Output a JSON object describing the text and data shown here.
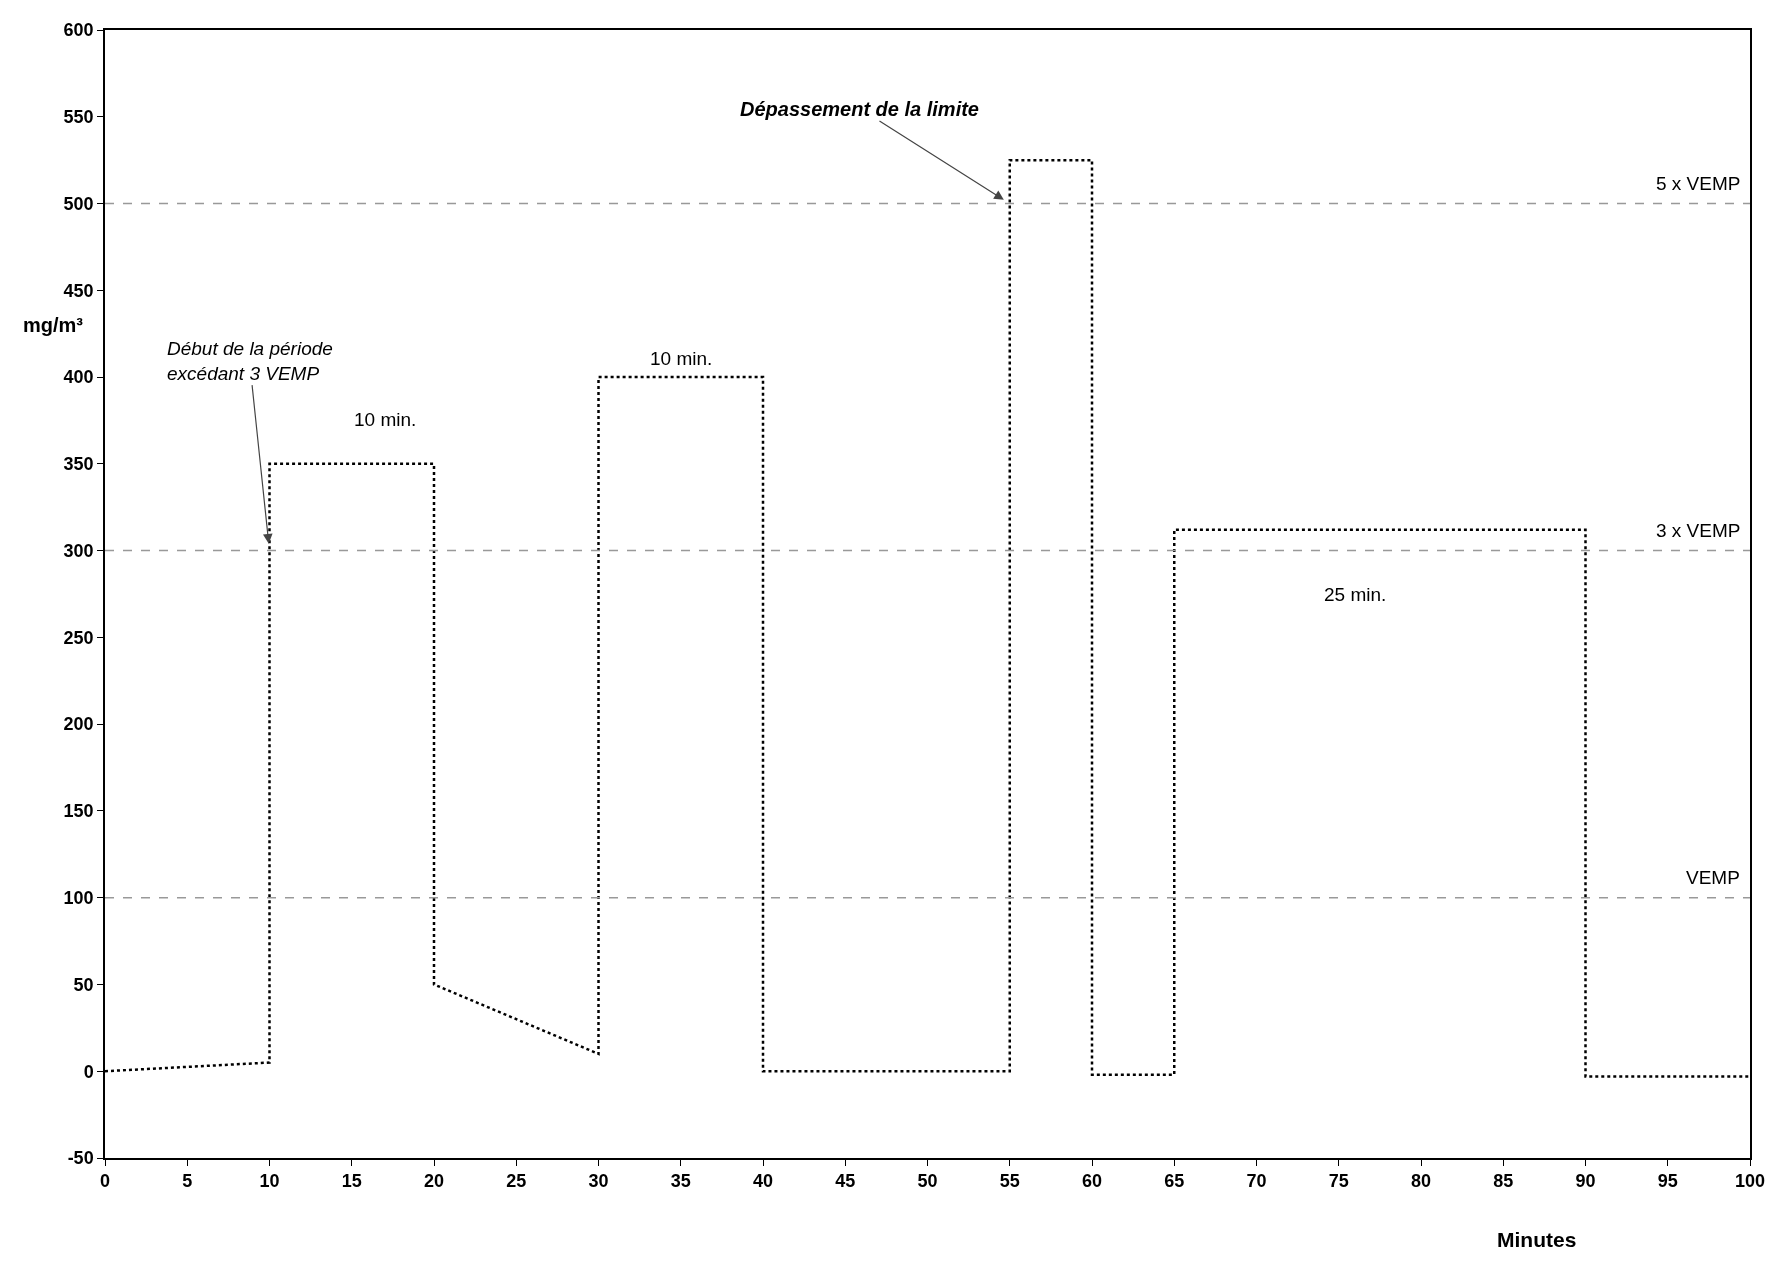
{
  "chart_data": {
    "type": "line",
    "xlabel": "Minutes",
    "ylabel": "mg/m³",
    "x": [
      0,
      10,
      10,
      20,
      20,
      30,
      30,
      40,
      40,
      55,
      55,
      60,
      60,
      65,
      65,
      90,
      90,
      100
    ],
    "series": [
      {
        "color": "#000000",
        "line_style": "dotted",
        "values": [
          0,
          5,
          350,
          350,
          50,
          10,
          400,
          400,
          0,
          0,
          525,
          525,
          -2,
          -2,
          312,
          312,
          -3,
          -3
        ]
      }
    ],
    "xlim": [
      0,
      100
    ],
    "xticks": [
      0,
      5,
      10,
      15,
      20,
      25,
      30,
      35,
      40,
      45,
      50,
      55,
      60,
      65,
      70,
      75,
      80,
      85,
      90,
      95,
      100
    ],
    "ylim": [
      -50,
      600
    ],
    "yticks": [
      -50,
      0,
      50,
      100,
      150,
      200,
      250,
      300,
      350,
      400,
      450,
      500,
      550,
      600
    ],
    "marker": "none",
    "ref_lines": [
      {
        "axis": "y",
        "value": 500,
        "label": "5 x VEMP",
        "color": "#999999",
        "line_style": "dashed"
      },
      {
        "axis": "y",
        "value": 300,
        "label": "3 x VEMP",
        "color": "#999999",
        "line_style": "dashed"
      },
      {
        "axis": "y",
        "value": 100,
        "label": "VEMP",
        "color": "#999999",
        "line_style": "dashed"
      }
    ],
    "annotations": [
      {
        "text": "Dépassement de la limite",
        "x": 55,
        "y": 500
      },
      {
        "text": "Début de la période\nexcédant 3 VEMP",
        "x": 10,
        "y": 300
      },
      "10 min.",
      "10 min.",
      "25 min."
    ]
  }
}
